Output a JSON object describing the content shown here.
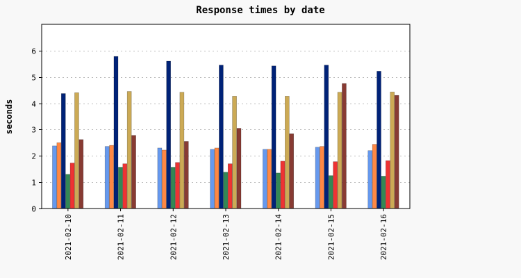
{
  "chart_data": {
    "type": "bar",
    "title": "Response times by date",
    "xlabel": "",
    "ylabel": "seconds",
    "ylim": [
      0,
      7
    ],
    "yticks": [
      0,
      1,
      2,
      3,
      4,
      5,
      6
    ],
    "grid": "horizontal dotted",
    "legend": "none",
    "categories": [
      "2021-02-10",
      "2021-02-11",
      "2021-02-12",
      "2021-02-13",
      "2021-02-14",
      "2021-02-15",
      "2021-02-16"
    ],
    "series": [
      {
        "color": "#6699ee",
        "values": [
          2.38,
          2.36,
          2.3,
          2.25,
          2.25,
          2.33,
          2.2
        ]
      },
      {
        "color": "#ff8844",
        "values": [
          2.5,
          2.4,
          2.22,
          2.3,
          2.25,
          2.36,
          2.44
        ]
      },
      {
        "color": "#002277",
        "values": [
          4.37,
          5.78,
          5.6,
          5.45,
          5.42,
          5.45,
          5.22
        ]
      },
      {
        "color": "#338855",
        "values": [
          1.3,
          1.57,
          1.57,
          1.38,
          1.35,
          1.25,
          1.23
        ]
      },
      {
        "color": "#ee3333",
        "values": [
          1.73,
          1.7,
          1.75,
          1.7,
          1.8,
          1.78,
          1.82
        ]
      },
      {
        "color": "#ccaa55",
        "values": [
          4.4,
          4.45,
          4.42,
          4.27,
          4.27,
          4.42,
          4.43
        ]
      },
      {
        "color": "#883b33",
        "values": [
          2.62,
          2.78,
          2.55,
          3.05,
          2.84,
          4.75,
          4.3
        ]
      }
    ]
  }
}
